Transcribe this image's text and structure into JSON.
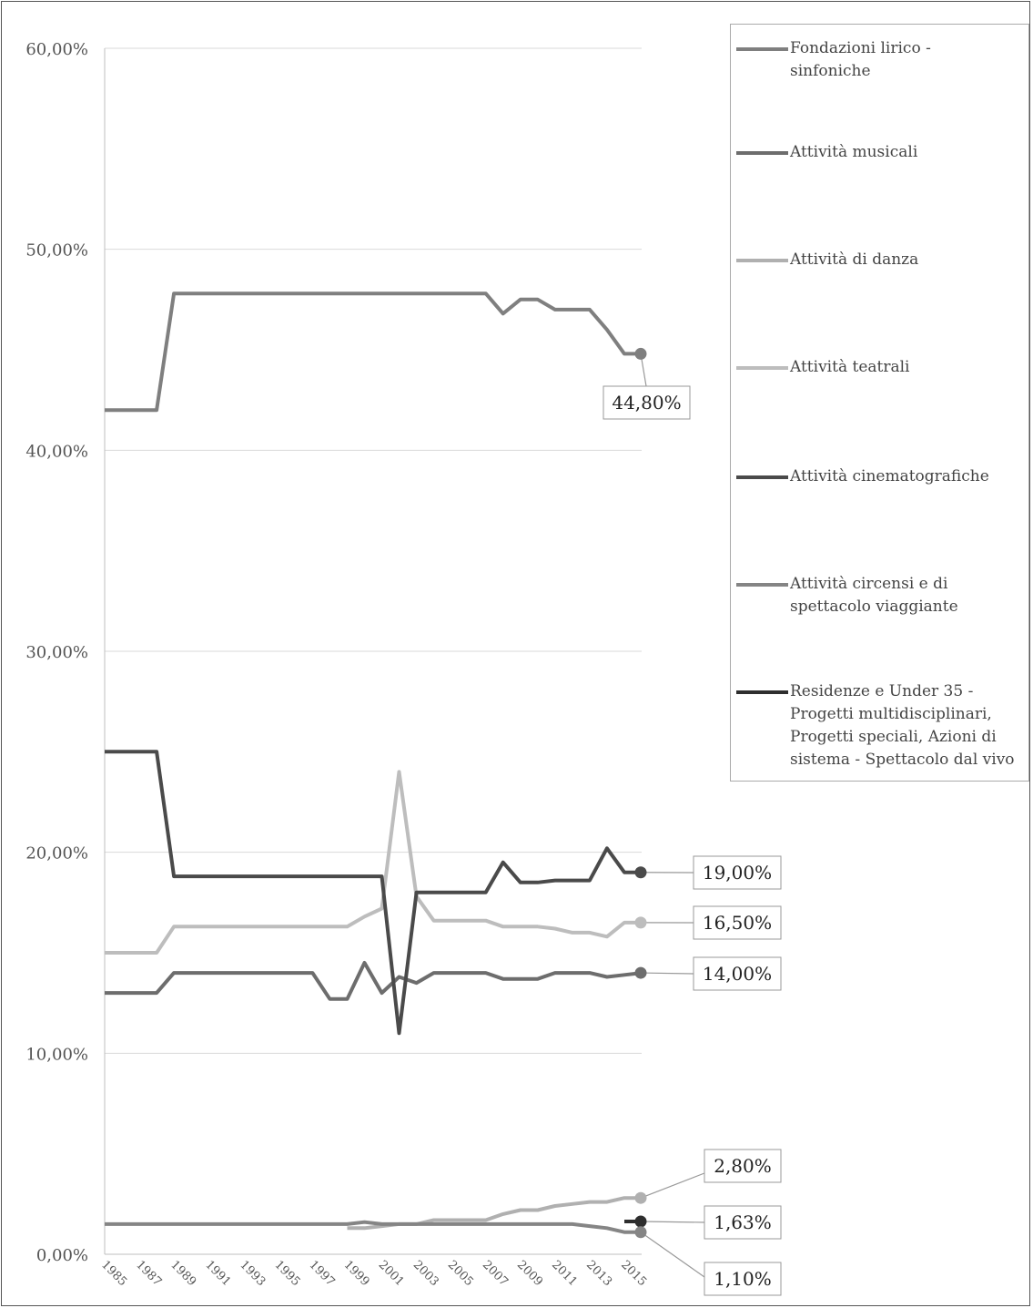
{
  "chart_data": {
    "type": "line",
    "title": "",
    "xlabel": "",
    "ylabel": "",
    "ylim": [
      0,
      60
    ],
    "y_ticks": [
      "0,00%",
      "10,00%",
      "20,00%",
      "30,00%",
      "40,00%",
      "50,00%",
      "60,00%"
    ],
    "x_tick_labels": [
      "1985",
      "1987",
      "1989",
      "1991",
      "1993",
      "1995",
      "1997",
      "1999",
      "2001",
      "2003",
      "2005",
      "2007",
      "2009",
      "2011",
      "2013",
      "2015"
    ],
    "grid": true,
    "legend_position": "right",
    "x": [
      1985,
      1986,
      1987,
      1988,
      1989,
      1990,
      1991,
      1992,
      1993,
      1994,
      1995,
      1996,
      1997,
      1998,
      1999,
      2000,
      2001,
      2002,
      2003,
      2004,
      2005,
      2006,
      2007,
      2008,
      2009,
      2010,
      2011,
      2012,
      2013,
      2014,
      2015,
      2016
    ],
    "series": [
      {
        "name": "Fondazioni lirico - sinfoniche",
        "color": "#7f7f7f",
        "end_label": "44,80%",
        "values": [
          42,
          42,
          42,
          42,
          47.8,
          47.8,
          47.8,
          47.8,
          47.8,
          47.8,
          47.8,
          47.8,
          47.8,
          47.8,
          47.8,
          47.8,
          47.8,
          47.8,
          47.8,
          47.8,
          47.8,
          47.8,
          47.8,
          46.8,
          47.5,
          47.5,
          47,
          47,
          47,
          46,
          44.8,
          44.8
        ]
      },
      {
        "name": "Attività musicali",
        "color": "#6d6d6d",
        "end_label": "14,00%",
        "values": [
          13,
          13,
          13,
          13,
          14,
          14,
          14,
          14,
          14,
          14,
          14,
          14,
          14,
          12.7,
          12.7,
          14.5,
          13,
          13.8,
          13.5,
          14,
          14,
          14,
          14,
          13.7,
          13.7,
          13.7,
          14,
          14,
          14,
          13.8,
          13.9,
          14
        ]
      },
      {
        "name": "Attività di danza",
        "color": "#b0b0b0",
        "end_label": "2,80%",
        "values": [
          null,
          null,
          null,
          null,
          null,
          null,
          null,
          null,
          null,
          null,
          null,
          null,
          null,
          null,
          1.3,
          1.3,
          1.4,
          1.5,
          1.5,
          1.7,
          1.7,
          1.7,
          1.7,
          2,
          2.2,
          2.2,
          2.4,
          2.5,
          2.6,
          2.6,
          2.8,
          2.8
        ]
      },
      {
        "name": "Attività teatrali",
        "color": "#bdbdbd",
        "end_label": "16,50%",
        "values": [
          15,
          15,
          15,
          15,
          16.3,
          16.3,
          16.3,
          16.3,
          16.3,
          16.3,
          16.3,
          16.3,
          16.3,
          16.3,
          16.3,
          16.8,
          17.2,
          24,
          17.8,
          16.6,
          16.6,
          16.6,
          16.6,
          16.3,
          16.3,
          16.3,
          16.2,
          16,
          16,
          15.8,
          16.5,
          16.5
        ]
      },
      {
        "name": "Attività cinematografiche",
        "color": "#4a4a4a",
        "end_label": "19,00%",
        "values": [
          25,
          25,
          25,
          25,
          18.8,
          18.8,
          18.8,
          18.8,
          18.8,
          18.8,
          18.8,
          18.8,
          18.8,
          18.8,
          18.8,
          18.8,
          18.8,
          11,
          18,
          18,
          18,
          18,
          18,
          19.5,
          18.5,
          18.5,
          18.6,
          18.6,
          18.6,
          20.2,
          19,
          19
        ]
      },
      {
        "name": "Attività circensi e di spettacolo viaggiante",
        "color": "#858585",
        "end_label": "1,10%",
        "values": [
          1.5,
          1.5,
          1.5,
          1.5,
          1.5,
          1.5,
          1.5,
          1.5,
          1.5,
          1.5,
          1.5,
          1.5,
          1.5,
          1.5,
          1.5,
          1.6,
          1.5,
          1.5,
          1.5,
          1.5,
          1.5,
          1.5,
          1.5,
          1.5,
          1.5,
          1.5,
          1.5,
          1.5,
          1.4,
          1.3,
          1.1,
          1.1
        ]
      },
      {
        "name": "Residenze e Under 35 - Progetti multidisciplinari, Progetti speciali, Azioni di sistema - Spettacolo dal vivo",
        "color": "#2e2e2e",
        "end_label": "1,63%",
        "values": [
          null,
          null,
          null,
          null,
          null,
          null,
          null,
          null,
          null,
          null,
          null,
          null,
          null,
          null,
          null,
          null,
          null,
          null,
          null,
          null,
          null,
          null,
          null,
          null,
          null,
          null,
          null,
          null,
          null,
          null,
          1.63,
          1.63
        ]
      }
    ]
  },
  "legend": {
    "items": [
      {
        "label": "Fondazioni lirico - sinfoniche",
        "color": "#7f7f7f"
      },
      {
        "label": "Attività musicali",
        "color": "#6d6d6d"
      },
      {
        "label": "Attività di danza",
        "color": "#b0b0b0"
      },
      {
        "label": "Attività teatrali",
        "color": "#bdbdbd"
      },
      {
        "label": "Attività cinematografiche",
        "color": "#4a4a4a"
      },
      {
        "label": "Attività circensi e di spettacolo viaggiante",
        "color": "#858585"
      },
      {
        "label": "Residenze e Under 35 - Progetti multidisciplinari, Progetti speciali, Azioni di sistema - Spettacolo dal vivo",
        "color": "#2e2e2e"
      }
    ]
  }
}
